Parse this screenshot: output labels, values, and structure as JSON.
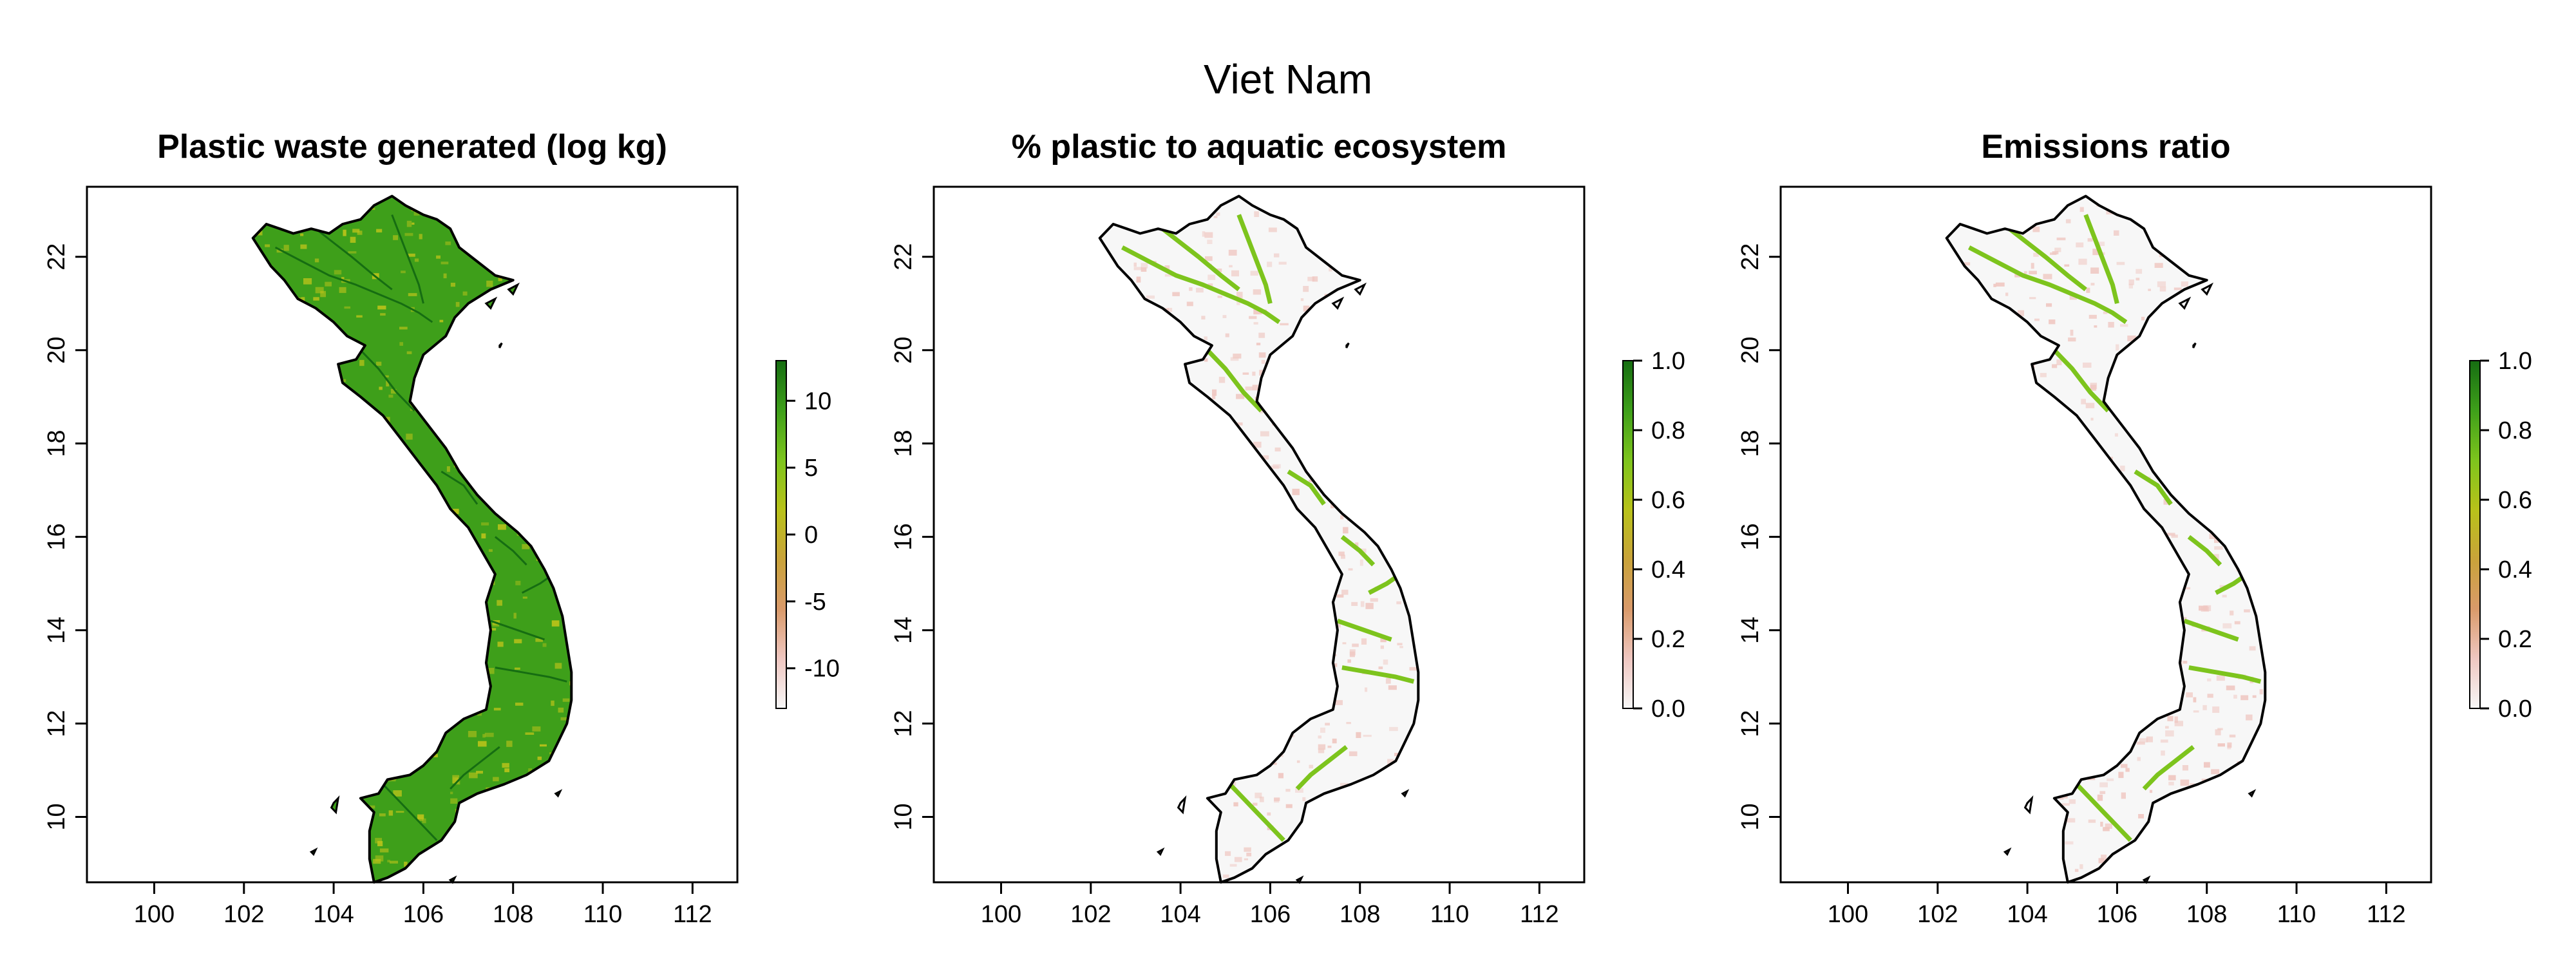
{
  "figure": {
    "title": "Viet Nam"
  },
  "colors": {
    "scale": [
      "#f7f7f7",
      "#efc7c1",
      "#d99a6a",
      "#c9a33a",
      "#b8c21a",
      "#7dc41d",
      "#3e9f1a",
      "#166d12"
    ],
    "missing": "#f0f0f0",
    "outline": "#000000"
  },
  "chart_data": [
    {
      "type": "heatmap",
      "title": "Plastic waste generated (log kg)",
      "xlim": [
        98.5,
        113
      ],
      "ylim": [
        8.6,
        23.5
      ],
      "x_ticks": [
        100,
        102,
        104,
        106,
        108,
        110,
        112
      ],
      "y_ticks": [
        10,
        12,
        14,
        16,
        18,
        20,
        22
      ],
      "legend": {
        "range": [
          -13,
          13
        ],
        "ticks": [
          10,
          5,
          0,
          -5,
          -10
        ]
      },
      "dominant_value": 10,
      "secondary_value": 0
    },
    {
      "type": "heatmap",
      "title": "% plastic to aquatic ecosystem",
      "xlim": [
        98.5,
        113
      ],
      "ylim": [
        8.6,
        23.5
      ],
      "x_ticks": [
        100,
        102,
        104,
        106,
        108,
        110,
        112
      ],
      "y_ticks": [
        10,
        12,
        14,
        16,
        18,
        20,
        22
      ],
      "legend": {
        "range": [
          0,
          1
        ],
        "ticks": [
          1.0,
          0.8,
          0.6,
          0.4,
          0.2,
          0.0
        ]
      },
      "dominant_value": 0.0,
      "secondary_value": 0.2
    },
    {
      "type": "heatmap",
      "title": "Emissions ratio",
      "xlim": [
        98.5,
        113
      ],
      "ylim": [
        8.6,
        23.5
      ],
      "x_ticks": [
        100,
        102,
        104,
        106,
        108,
        110,
        112
      ],
      "y_ticks": [
        10,
        12,
        14,
        16,
        18,
        20,
        22
      ],
      "legend": {
        "range": [
          0,
          1
        ],
        "ticks": [
          1.0,
          0.8,
          0.6,
          0.4,
          0.2,
          0.0
        ]
      },
      "dominant_value": 0.0,
      "secondary_value": 0.2
    }
  ],
  "coastline": [
    [
      102.2,
      22.4
    ],
    [
      102.5,
      22.7
    ],
    [
      102.8,
      22.6
    ],
    [
      103.1,
      22.5
    ],
    [
      103.5,
      22.6
    ],
    [
      103.9,
      22.5
    ],
    [
      104.2,
      22.7
    ],
    [
      104.6,
      22.8
    ],
    [
      104.9,
      23.1
    ],
    [
      105.3,
      23.3
    ],
    [
      105.6,
      23.1
    ],
    [
      106.0,
      22.9
    ],
    [
      106.3,
      22.8
    ],
    [
      106.6,
      22.6
    ],
    [
      106.8,
      22.2
    ],
    [
      107.2,
      21.9
    ],
    [
      107.6,
      21.6
    ],
    [
      108.0,
      21.5
    ],
    [
      107.5,
      21.3
    ],
    [
      107.0,
      21.0
    ],
    [
      106.7,
      20.7
    ],
    [
      106.5,
      20.3
    ],
    [
      106.0,
      19.9
    ],
    [
      105.8,
      19.4
    ],
    [
      105.7,
      18.9
    ],
    [
      106.1,
      18.4
    ],
    [
      106.5,
      17.9
    ],
    [
      106.8,
      17.4
    ],
    [
      107.2,
      16.9
    ],
    [
      107.6,
      16.5
    ],
    [
      108.1,
      16.1
    ],
    [
      108.4,
      15.8
    ],
    [
      108.7,
      15.3
    ],
    [
      108.9,
      14.9
    ],
    [
      109.1,
      14.3
    ],
    [
      109.2,
      13.7
    ],
    [
      109.3,
      13.1
    ],
    [
      109.3,
      12.5
    ],
    [
      109.2,
      12.0
    ],
    [
      109.0,
      11.6
    ],
    [
      108.8,
      11.2
    ],
    [
      108.3,
      10.9
    ],
    [
      107.8,
      10.7
    ],
    [
      107.2,
      10.5
    ],
    [
      106.8,
      10.3
    ],
    [
      106.7,
      9.9
    ],
    [
      106.4,
      9.5
    ],
    [
      105.9,
      9.2
    ],
    [
      105.6,
      8.9
    ],
    [
      105.2,
      8.7
    ],
    [
      104.9,
      8.6
    ],
    [
      104.8,
      9.1
    ],
    [
      104.8,
      9.7
    ],
    [
      104.9,
      10.1
    ],
    [
      104.6,
      10.4
    ],
    [
      105.0,
      10.5
    ],
    [
      105.2,
      10.8
    ],
    [
      105.7,
      10.9
    ],
    [
      106.0,
      11.1
    ],
    [
      106.3,
      11.4
    ],
    [
      106.5,
      11.8
    ],
    [
      106.9,
      12.1
    ],
    [
      107.4,
      12.3
    ],
    [
      107.5,
      12.8
    ],
    [
      107.4,
      13.3
    ],
    [
      107.5,
      14.0
    ],
    [
      107.4,
      14.6
    ],
    [
      107.6,
      15.2
    ],
    [
      107.3,
      15.7
    ],
    [
      107.0,
      16.2
    ],
    [
      106.6,
      16.6
    ],
    [
      106.3,
      17.1
    ],
    [
      105.9,
      17.6
    ],
    [
      105.5,
      18.1
    ],
    [
      105.1,
      18.6
    ],
    [
      104.6,
      19.0
    ],
    [
      104.2,
      19.3
    ],
    [
      104.1,
      19.7
    ],
    [
      104.5,
      19.8
    ],
    [
      104.7,
      20.1
    ],
    [
      104.3,
      20.3
    ],
    [
      104.0,
      20.6
    ],
    [
      103.6,
      20.9
    ],
    [
      103.2,
      21.1
    ],
    [
      102.9,
      21.5
    ],
    [
      102.6,
      21.8
    ],
    [
      102.4,
      22.1
    ]
  ],
  "islands": [
    [
      [
        104.0,
        10.3
      ],
      [
        104.1,
        10.4
      ],
      [
        104.05,
        10.1
      ],
      [
        103.95,
        10.2
      ]
    ],
    [
      [
        108.95,
        10.5
      ],
      [
        109.05,
        10.55
      ],
      [
        109.0,
        10.45
      ]
    ],
    [
      [
        103.5,
        9.25
      ],
      [
        103.6,
        9.3
      ],
      [
        103.55,
        9.2
      ]
    ],
    [
      [
        106.6,
        8.65
      ],
      [
        106.7,
        8.7
      ],
      [
        106.65,
        8.6
      ]
    ],
    [
      [
        107.7,
        20.1
      ],
      [
        107.75,
        20.15
      ],
      [
        107.7,
        20.05
      ]
    ],
    [
      [
        107.9,
        21.3
      ],
      [
        108.1,
        21.4
      ],
      [
        108.0,
        21.2
      ]
    ],
    [
      [
        107.4,
        21.0
      ],
      [
        107.6,
        21.1
      ],
      [
        107.5,
        20.9
      ]
    ]
  ],
  "rivers": [
    [
      [
        102.7,
        22.2
      ],
      [
        103.3,
        21.9
      ],
      [
        103.9,
        21.6
      ],
      [
        104.5,
        21.4
      ],
      [
        105.0,
        21.2
      ],
      [
        105.5,
        21.0
      ],
      [
        105.9,
        20.8
      ],
      [
        106.2,
        20.6
      ]
    ],
    [
      [
        103.6,
        22.6
      ],
      [
        104.0,
        22.3
      ],
      [
        104.4,
        22.0
      ],
      [
        104.9,
        21.6
      ],
      [
        105.3,
        21.3
      ]
    ],
    [
      [
        105.3,
        22.9
      ],
      [
        105.5,
        22.4
      ],
      [
        105.7,
        21.9
      ],
      [
        105.9,
        21.4
      ],
      [
        106.0,
        21.0
      ]
    ],
    [
      [
        104.6,
        20.0
      ],
      [
        105.0,
        19.6
      ],
      [
        105.4,
        19.1
      ],
      [
        105.8,
        18.7
      ]
    ],
    [
      [
        106.4,
        17.4
      ],
      [
        106.9,
        17.1
      ],
      [
        107.2,
        16.7
      ]
    ],
    [
      [
        107.6,
        16.0
      ],
      [
        108.0,
        15.7
      ],
      [
        108.3,
        15.4
      ]
    ],
    [
      [
        107.6,
        13.2
      ],
      [
        108.2,
        13.1
      ],
      [
        108.8,
        13.0
      ],
      [
        109.2,
        12.9
      ]
    ],
    [
      [
        107.5,
        14.2
      ],
      [
        108.1,
        14.0
      ],
      [
        108.7,
        13.8
      ]
    ],
    [
      [
        107.7,
        11.5
      ],
      [
        107.3,
        11.2
      ],
      [
        106.9,
        10.9
      ],
      [
        106.6,
        10.6
      ]
    ],
    [
      [
        105.1,
        10.7
      ],
      [
        105.4,
        10.4
      ],
      [
        105.7,
        10.1
      ],
      [
        106.0,
        9.8
      ],
      [
        106.3,
        9.5
      ]
    ],
    [
      [
        108.9,
        15.2
      ],
      [
        108.6,
        15.0
      ],
      [
        108.2,
        14.8
      ]
    ]
  ]
}
